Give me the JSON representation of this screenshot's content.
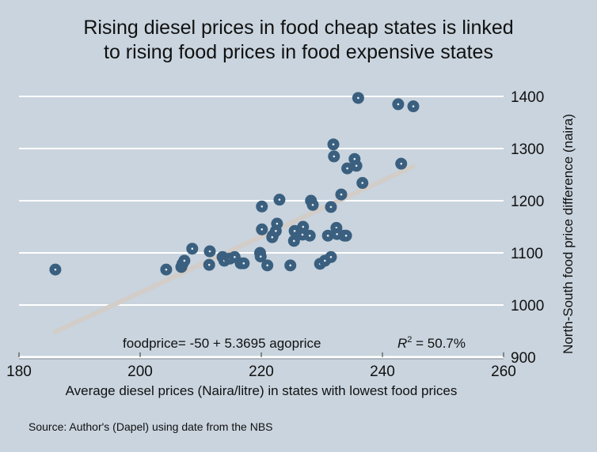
{
  "chart_data": {
    "type": "scatter",
    "title": "Rising diesel prices in food cheap states is linked to rising food prices in food expensive states",
    "title_lines": [
      "Rising diesel prices in food cheap states is linked",
      "to rising food prices in food expensive states"
    ],
    "xlabel": "Average diesel prices (Naira/litre) in states with lowest food prices",
    "ylabel": "North-South food price difference (naira)",
    "xlim": [
      180,
      260
    ],
    "ylim": [
      900,
      1400
    ],
    "x_ticks": [
      180,
      200,
      220,
      240,
      260
    ],
    "y_ticks": [
      900,
      1000,
      1100,
      1200,
      1300,
      1400
    ],
    "x_tick_labels": [
      "180",
      "200",
      "220",
      "240",
      "260"
    ],
    "y_tick_labels": [
      "900",
      "1000",
      "1100",
      "1200",
      "1300",
      "1400"
    ],
    "grid": "horizontal",
    "y_axis_side": "right",
    "colors": {
      "background": "#c9d4de",
      "point": "#3a5f7f",
      "point_center": "#e8eef3",
      "fit_line": "#d2cdc8",
      "grid": "#ffffff"
    },
    "series": [
      {
        "name": "states",
        "points": [
          [
            186.0,
            1068
          ],
          [
            204.3,
            1068
          ],
          [
            206.8,
            1073
          ],
          [
            207.0,
            1079
          ],
          [
            207.3,
            1085
          ],
          [
            208.6,
            1108
          ],
          [
            211.5,
            1103
          ],
          [
            211.4,
            1077
          ],
          [
            213.6,
            1092
          ],
          [
            213.9,
            1085
          ],
          [
            214.8,
            1089
          ],
          [
            215.6,
            1092
          ],
          [
            216.6,
            1080
          ],
          [
            217.1,
            1080
          ],
          [
            219.8,
            1100
          ],
          [
            219.9,
            1093
          ],
          [
            220.1,
            1145
          ],
          [
            220.1,
            1189
          ],
          [
            221.0,
            1076
          ],
          [
            221.9,
            1133
          ],
          [
            222.4,
            1142
          ],
          [
            221.8,
            1130
          ],
          [
            222.6,
            1156
          ],
          [
            223.0,
            1202
          ],
          [
            224.8,
            1076
          ],
          [
            225.4,
            1123
          ],
          [
            225.9,
            1135
          ],
          [
            226.8,
            1135
          ],
          [
            225.5,
            1142
          ],
          [
            226.9,
            1150
          ],
          [
            228.0,
            1133
          ],
          [
            228.2,
            1200
          ],
          [
            228.5,
            1192
          ],
          [
            229.7,
            1079
          ],
          [
            230.5,
            1085
          ],
          [
            231.5,
            1092
          ],
          [
            231.0,
            1133
          ],
          [
            231.5,
            1188
          ],
          [
            231.9,
            1308
          ],
          [
            232.0,
            1285
          ],
          [
            232.4,
            1148
          ],
          [
            232.5,
            1136
          ],
          [
            233.2,
            1212
          ],
          [
            233.7,
            1133
          ],
          [
            234.0,
            1133
          ],
          [
            234.2,
            1262
          ],
          [
            235.4,
            1280
          ],
          [
            235.7,
            1267
          ],
          [
            236.0,
            1397
          ],
          [
            236.7,
            1234
          ],
          [
            242.6,
            1385
          ],
          [
            243.1,
            1271
          ],
          [
            245.1,
            1381
          ]
        ]
      }
    ],
    "fit": {
      "intercept": -50,
      "slope": 5.3695,
      "x_range": [
        186,
        245
      ],
      "r_squared_percent": 50.7
    },
    "annotation": {
      "equation": "foodprice= -50 + 5.3695 agoprice",
      "r2_label": "R",
      "r2_sup": "2",
      "r2_value": " = 50.7%"
    }
  },
  "source": "Source: Author's (Dapel) using date from the NBS"
}
